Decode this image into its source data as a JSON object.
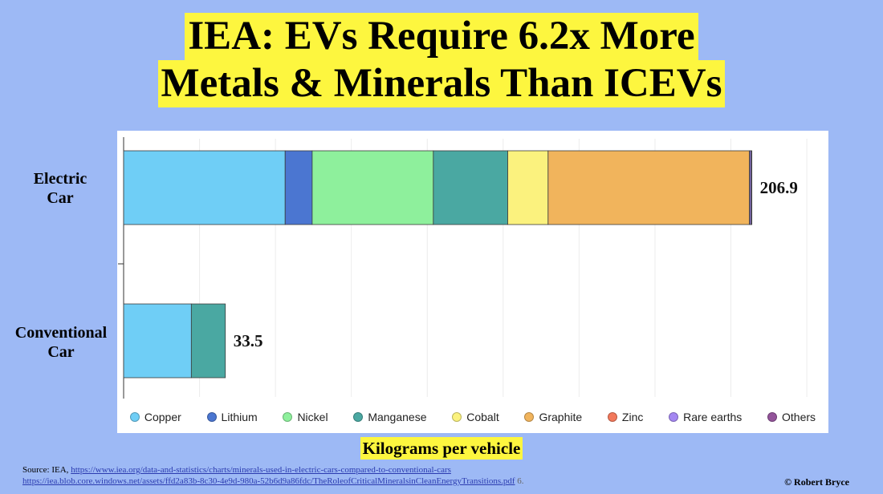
{
  "title": {
    "line1": "IEA: EVs Require 6.2x More",
    "line2": "Metals & Minerals Than ICEVs"
  },
  "chart_data": {
    "type": "bar",
    "orientation": "horizontal",
    "stacked": true,
    "categories": [
      "Electric Car",
      "Conventional Car"
    ],
    "category_labels": [
      {
        "line1": "Electric",
        "line2": "Car"
      },
      {
        "line1": "Conventional",
        "line2": "Car"
      }
    ],
    "series": [
      {
        "name": "Copper",
        "color": "#6fcef6",
        "values": [
          53.2,
          22.3
        ]
      },
      {
        "name": "Lithium",
        "color": "#4b76d1",
        "values": [
          8.9,
          0
        ]
      },
      {
        "name": "Nickel",
        "color": "#8ef09c",
        "values": [
          39.9,
          0
        ]
      },
      {
        "name": "Manganese",
        "color": "#4aa8a2",
        "values": [
          24.5,
          11.2
        ]
      },
      {
        "name": "Cobalt",
        "color": "#fbf27e",
        "values": [
          13.3,
          0
        ]
      },
      {
        "name": "Graphite",
        "color": "#f1b45c",
        "values": [
          66.3,
          0
        ]
      },
      {
        "name": "Zinc",
        "color": "#f2785b",
        "values": [
          0.1,
          0
        ]
      },
      {
        "name": "Rare earths",
        "color": "#a487f2",
        "values": [
          0.5,
          0
        ]
      },
      {
        "name": "Others",
        "color": "#93549a",
        "values": [
          0.2,
          0
        ]
      }
    ],
    "totals": [
      "206.9",
      "33.5"
    ],
    "xlabel": "Kilograms per vehicle",
    "xlim": [
      0,
      230
    ],
    "grid": true,
    "legend_position": "bottom"
  },
  "source": {
    "prefix": "Source: IEA,",
    "link1": "https://www.iea.org/data-and-statistics/charts/minerals-used-in-electric-cars-compared-to-conventional-cars",
    "link2": "https://iea.blob.core.windows.net/assets/ffd2a83b-8c30-4e9d-980a-52b6d9a86fdc/TheRoleofCriticalMineralsinCleanEnergyTransitions.pdf",
    "suffix": "6."
  },
  "copyright": "© Robert Bryce"
}
